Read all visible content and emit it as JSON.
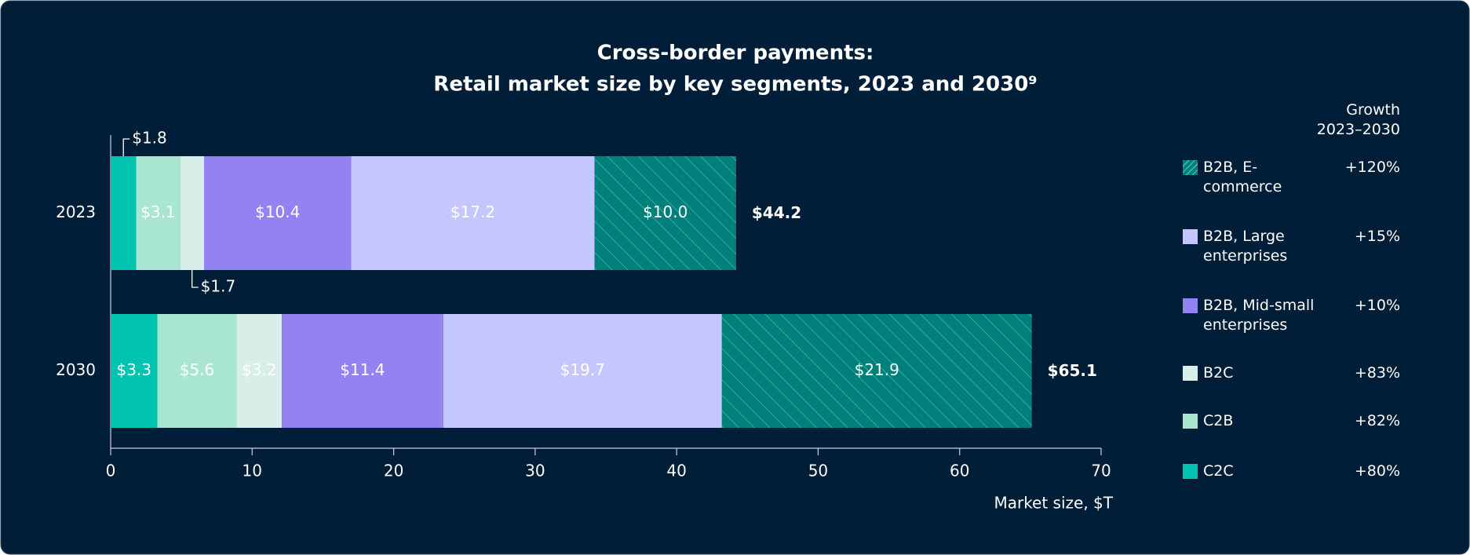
{
  "chart_data": {
    "type": "stacked-bar-horizontal",
    "title": [
      "Cross-border payments:",
      "Retail market size by key segments, 2023 and 2030⁹"
    ],
    "categories": [
      "2023",
      "2030"
    ],
    "series": [
      {
        "name": "C2C",
        "color": "#00c4b0",
        "values": [
          1.8,
          3.3
        ],
        "value_labels": [
          "$1.8",
          "$3.3"
        ],
        "growth": 80,
        "growth_label": "+80%"
      },
      {
        "name": "C2B",
        "color": "#a8e6d2",
        "values": [
          3.1,
          5.6
        ],
        "value_labels": [
          "$3.1",
          "$5.6"
        ],
        "growth": 82,
        "growth_label": "+82%"
      },
      {
        "name": "B2C",
        "color": "#d8efe9",
        "values": [
          1.7,
          3.2
        ],
        "value_labels": [
          "$1.7",
          "$3.2"
        ],
        "growth": 83,
        "growth_label": "+83%"
      },
      {
        "name": "B2B, Mid-small enterprises",
        "color": "#9283f0",
        "values": [
          10.4,
          11.4
        ],
        "value_labels": [
          "$10.4",
          "$11.4"
        ],
        "growth": 10,
        "growth_label": "+10%"
      },
      {
        "name": "B2B, Large enterprises",
        "color": "#c6c6ff",
        "values": [
          17.2,
          19.7
        ],
        "value_labels": [
          "$17.2",
          "$19.7"
        ],
        "growth": 15,
        "growth_label": "+15%"
      },
      {
        "name": "B2B, E-commerce",
        "color": "#00807a",
        "hatch": true,
        "values": [
          10.0,
          21.9
        ],
        "value_labels": [
          "$10.0",
          "$21.9"
        ],
        "growth": 120,
        "growth_label": "+120%"
      }
    ],
    "totals": [
      44.2,
      65.1
    ],
    "total_labels": [
      "$44.2",
      "$65.1"
    ],
    "growth_header": [
      "Growth",
      "2023–2030"
    ],
    "xlabel": "Market size, $T",
    "xlim": [
      0,
      70
    ],
    "xticks": [
      0,
      10,
      20,
      30,
      40,
      50,
      60,
      70
    ]
  }
}
